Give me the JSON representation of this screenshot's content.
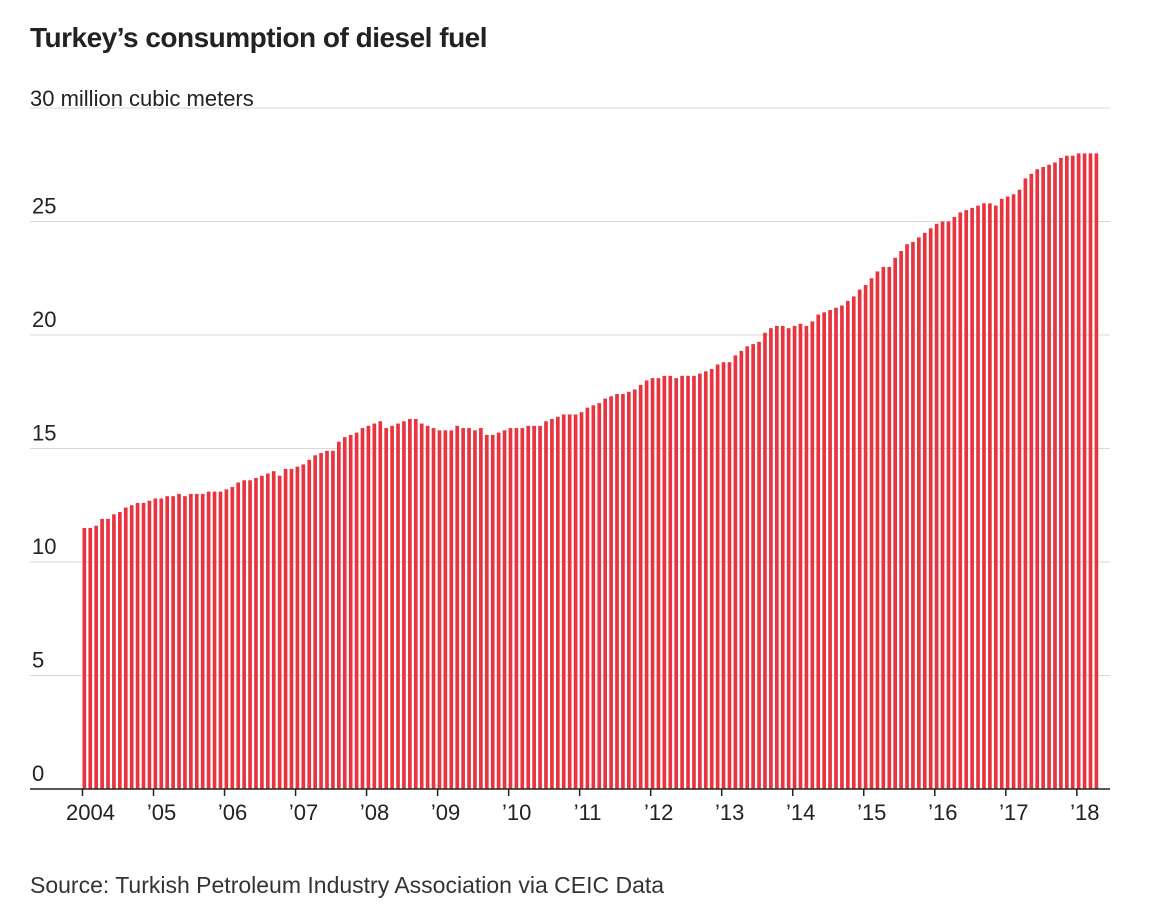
{
  "chart_data": {
    "type": "bar",
    "title": "Turkey’s consumption of diesel fuel",
    "unit_label": "30 million cubic meters",
    "source": "Source: Turkish Petroleum Industry Association via CEIC Data",
    "y_tick_labels": [
      "0",
      "5",
      "10",
      "15",
      "20",
      "25"
    ],
    "y_ticks": [
      0,
      5,
      10,
      15,
      20,
      25,
      30
    ],
    "ylim": [
      0,
      30
    ],
    "x_tick_labels": [
      "2004",
      "’05",
      "’06",
      "’07",
      "’08",
      "’09",
      "’10",
      "’11",
      "’12",
      "’13",
      "’14",
      "’15",
      "’16",
      "’17",
      "’18"
    ],
    "grid": true,
    "frequency": "monthly",
    "series": [
      {
        "color": "#e8343f",
        "values": [
          11.5,
          11.5,
          11.6,
          11.9,
          11.9,
          12.1,
          12.2,
          12.4,
          12.5,
          12.6,
          12.6,
          12.7,
          12.8,
          12.8,
          12.9,
          12.9,
          13.0,
          12.9,
          13.0,
          13.0,
          13.0,
          13.1,
          13.1,
          13.1,
          13.2,
          13.3,
          13.5,
          13.6,
          13.6,
          13.7,
          13.8,
          13.9,
          14.0,
          13.8,
          14.1,
          14.1,
          14.2,
          14.3,
          14.5,
          14.7,
          14.8,
          14.9,
          14.9,
          15.3,
          15.5,
          15.6,
          15.7,
          15.9,
          16.0,
          16.1,
          16.2,
          15.9,
          16.0,
          16.1,
          16.2,
          16.3,
          16.3,
          16.1,
          16.0,
          15.9,
          15.8,
          15.8,
          15.8,
          16.0,
          15.9,
          15.9,
          15.8,
          15.9,
          15.6,
          15.6,
          15.7,
          15.8,
          15.9,
          15.9,
          15.9,
          16.0,
          16.0,
          16.0,
          16.2,
          16.3,
          16.4,
          16.5,
          16.5,
          16.5,
          16.6,
          16.8,
          16.9,
          17.0,
          17.2,
          17.3,
          17.4,
          17.4,
          17.5,
          17.6,
          17.8,
          18.0,
          18.1,
          18.1,
          18.2,
          18.2,
          18.1,
          18.2,
          18.2,
          18.2,
          18.3,
          18.4,
          18.5,
          18.7,
          18.8,
          18.8,
          19.1,
          19.3,
          19.5,
          19.6,
          19.7,
          20.1,
          20.3,
          20.4,
          20.4,
          20.3,
          20.4,
          20.5,
          20.4,
          20.6,
          20.9,
          21.0,
          21.1,
          21.2,
          21.3,
          21.5,
          21.7,
          22.0,
          22.2,
          22.5,
          22.8,
          23.0,
          23.0,
          23.4,
          23.7,
          24.0,
          24.1,
          24.3,
          24.5,
          24.7,
          24.9,
          25.0,
          25.0,
          25.2,
          25.4,
          25.5,
          25.6,
          25.7,
          25.8,
          25.8,
          25.7,
          26.0,
          26.1,
          26.2,
          26.4,
          26.9,
          27.1,
          27.3,
          27.4,
          27.5,
          27.6,
          27.8,
          27.9,
          27.9,
          28.0,
          28.0,
          28.0,
          28.0
        ]
      }
    ]
  }
}
